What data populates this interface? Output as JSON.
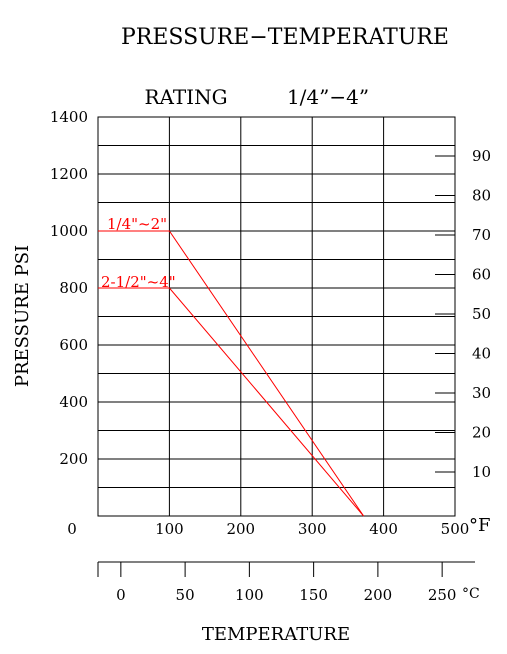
{
  "chart_data": {
    "type": "line",
    "title": "PRESSURE−TEMPERATURE",
    "subtitle_left": "RATING",
    "subtitle_right": "1/4”−4”",
    "ylabel": "PRESSURE  PSI",
    "xlabel": "TEMPERATURE",
    "x_unit": "°F",
    "x2_unit": "°C",
    "xlim": [
      0,
      500
    ],
    "ylim": [
      0,
      1400
    ],
    "x_ticks": [
      "0",
      "100",
      "200",
      "300",
      "400",
      "500"
    ],
    "y_ticks": [
      "200",
      "400",
      "600",
      "800",
      "1000",
      "1200",
      "1400"
    ],
    "x2_ticks": [
      "0",
      "50",
      "100",
      "150",
      "200",
      "250"
    ],
    "right_scale_ticks": [
      "10",
      "20",
      "30",
      "40",
      "50",
      "60",
      "70",
      "80",
      "90"
    ],
    "grid": true,
    "line_color": "#ff0000",
    "series": [
      {
        "name": "1/4\"~2\"",
        "x": [
          0,
          100,
          372
        ],
        "y": [
          1000,
          1000,
          0
        ]
      },
      {
        "name": "2-1/2\"~4\"",
        "x": [
          0,
          100,
          372
        ],
        "y": [
          800,
          800,
          0
        ]
      }
    ]
  }
}
